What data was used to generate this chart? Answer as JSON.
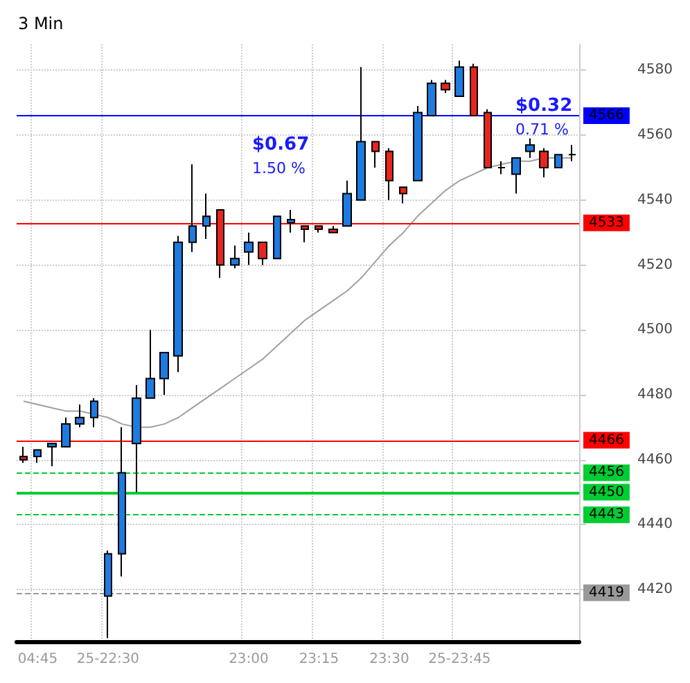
{
  "chart_data": {
    "type": "candlestick",
    "title": "3 Min",
    "categories": [
      null,
      "04:45",
      null,
      null,
      null,
      null,
      "25-22:30",
      null,
      null,
      null,
      null,
      null,
      null,
      null,
      null,
      null,
      "23:00",
      null,
      null,
      null,
      null,
      "23:15",
      null,
      null,
      null,
      null,
      "23:30",
      null,
      null,
      null,
      null,
      "25-23:45",
      null,
      null,
      null,
      null,
      null,
      null,
      null,
      null
    ],
    "series": [
      {
        "colors": [
          "#e8261e",
          "#1e7be0",
          "#1e7be0",
          "#1e7be0",
          "#1e7be0",
          "#1e7be0",
          "#1e7be0",
          "#1e7be0",
          "#1e7be0",
          "#1e7be0",
          "#1e7be0",
          "#1e7be0",
          "#1e7be0",
          "#1e7be0",
          "#e8261e",
          "#1e7be0",
          "#1e7be0",
          "#e8261e",
          "#1e7be0",
          "#1e7be0",
          "#e8261e",
          "#e8261e",
          "#e8261e",
          "#1e7be0",
          "#1e7be0",
          "#e8261e",
          "#e8261e",
          "#e8261e",
          "#1e7be0",
          "#1e7be0",
          "#e8261e",
          "#1e7be0",
          "#e8261e",
          "#e8261e",
          "#000000",
          "#1e7be0",
          "#1e7be0",
          "#e8261e",
          "#1e7be0",
          "#000000"
        ],
        "ohlc": [
          [
            4461,
            4464,
            4459,
            4460
          ],
          [
            4461,
            4463,
            4459,
            4463
          ],
          [
            4464,
            4465,
            4458,
            4465
          ],
          [
            4464,
            4473,
            4464,
            4471
          ],
          [
            4471,
            4477,
            4470,
            4473
          ],
          [
            4473,
            4479,
            4470,
            4478
          ],
          [
            4418,
            4432,
            4405,
            4431
          ],
          [
            4431,
            4470,
            4424,
            4456
          ],
          [
            4465,
            4483,
            4450,
            4479
          ],
          [
            4479,
            4500,
            4479,
            4485
          ],
          [
            4485,
            4493,
            4480,
            4493
          ],
          [
            4492,
            4529,
            4487,
            4527
          ],
          [
            4527,
            4551,
            4524,
            4532
          ],
          [
            4532,
            4542,
            4528,
            4535
          ],
          [
            4537,
            4537,
            4516,
            4520
          ],
          [
            4520,
            4526,
            4519,
            4522
          ],
          [
            4524,
            4530,
            4520,
            4527
          ],
          [
            4527,
            4527,
            4520,
            4522
          ],
          [
            4522,
            4535,
            4522,
            4535
          ],
          [
            4533,
            4537,
            4530,
            4534
          ],
          [
            4532,
            4532,
            4527,
            4531
          ],
          [
            4532,
            4532,
            4530,
            4531
          ],
          [
            4531,
            4532,
            4530,
            4530
          ],
          [
            4532,
            4546,
            4532,
            4542
          ],
          [
            4540,
            4581,
            4540,
            4558
          ],
          [
            4558,
            4558,
            4550,
            4555
          ],
          [
            4555,
            4556,
            4540,
            4546
          ],
          [
            4544,
            4544,
            4539,
            4542
          ],
          [
            4546,
            4569,
            4546,
            4567
          ],
          [
            4566,
            4577,
            4566,
            4576
          ],
          [
            4576,
            4577,
            4573,
            4574
          ],
          [
            4572,
            4583,
            4572,
            4581
          ],
          [
            4581,
            4582,
            4566,
            4566
          ],
          [
            4567,
            4568,
            4550,
            4550
          ],
          [
            4550,
            4552,
            4548,
            4550
          ],
          [
            4548,
            4553,
            4542,
            4553
          ],
          [
            4555,
            4559,
            4553,
            4557
          ],
          [
            4555,
            4556,
            4547,
            4550
          ],
          [
            4550,
            4554,
            4550,
            4554
          ],
          [
            4554,
            4557,
            4552,
            4554
          ]
        ]
      },
      {
        "type": "line",
        "color": "#a0a0a0",
        "values": [
          4478,
          4477,
          4476,
          4475,
          4475,
          4474,
          4473,
          4471,
          4470,
          4470,
          4471,
          4473,
          4476,
          4479,
          4482,
          4485,
          4488,
          4491,
          4495,
          4499,
          4503,
          4506,
          4509,
          4512,
          4516,
          4521,
          4526,
          4530,
          4535,
          4539,
          4543,
          4546,
          4548,
          4550,
          4551,
          4552,
          4552,
          4553,
          4553,
          4553
        ]
      }
    ],
    "ylim": [
      4404,
      4588
    ],
    "yticks": [
      4420,
      4440,
      4460,
      4480,
      4500,
      4520,
      4540,
      4560,
      4580
    ],
    "grid": true,
    "ref_lines": [
      {
        "axis": "y",
        "value": 4566,
        "label": "4566",
        "color": "#0000ff",
        "line_style": "solid"
      },
      {
        "axis": "y",
        "value": 4533,
        "label": "4533",
        "color": "#ff0000",
        "line_style": "solid"
      },
      {
        "axis": "y",
        "value": 4466,
        "label": "4466",
        "color": "#ff0000",
        "line_style": "solid"
      },
      {
        "axis": "y",
        "value": 4456,
        "label": "4456",
        "color": "#00cc33",
        "line_style": "dashed"
      },
      {
        "axis": "y",
        "value": 4450,
        "label": "4450",
        "color": "#00cc33",
        "line_style": "solid"
      },
      {
        "axis": "y",
        "value": 4443,
        "label": "4443",
        "color": "#00cc33",
        "line_style": "dashed"
      },
      {
        "axis": "y",
        "value": 4419,
        "label": "4419",
        "color": "#999999",
        "line_style": "dashed"
      }
    ],
    "annotations": [
      "$0.67",
      "1.50 %",
      "$0.32",
      "0.71 %"
    ]
  }
}
